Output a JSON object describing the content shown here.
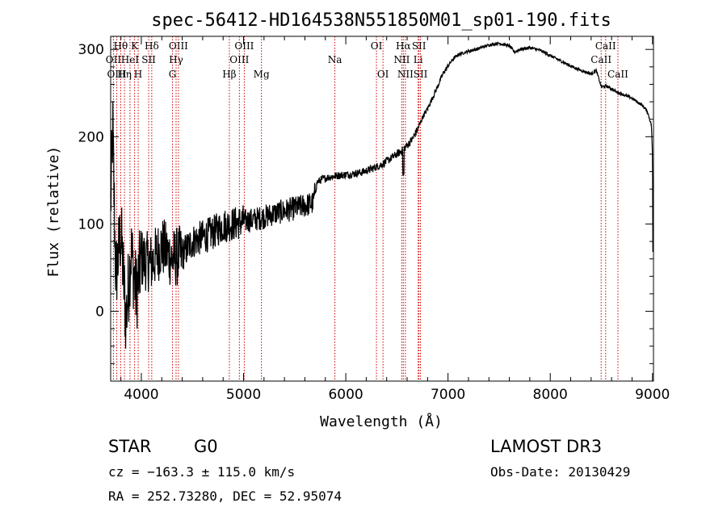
{
  "chart_data": {
    "type": "line",
    "title": "spec-56412-HD164538N551850M01_sp01-190.fits",
    "xlabel": "Wavelength (Å)",
    "ylabel": "Flux (relative)",
    "xlim": [
      3700,
      9010
    ],
    "ylim": [
      -80,
      315
    ],
    "xticks": [
      4000,
      5000,
      6000,
      7000,
      8000,
      9000
    ],
    "yticks": [
      0,
      100,
      200,
      300
    ],
    "colors": {
      "spectrum": "#000000",
      "lines": "#cc0000",
      "axes": "#000000"
    },
    "spectrum_anchors": [
      [
        3700,
        120
      ],
      [
        3720,
        210
      ],
      [
        3750,
        40
      ],
      [
        3800,
        90
      ],
      [
        3850,
        -10
      ],
      [
        3900,
        70
      ],
      [
        3950,
        20
      ],
      [
        4000,
        60
      ],
      [
        4100,
        55
      ],
      [
        4200,
        75
      ],
      [
        4300,
        60
      ],
      [
        4400,
        65
      ],
      [
        4500,
        80
      ],
      [
        4600,
        85
      ],
      [
        4700,
        90
      ],
      [
        4800,
        98
      ],
      [
        4900,
        100
      ],
      [
        5000,
        103
      ],
      [
        5100,
        105
      ],
      [
        5200,
        108
      ],
      [
        5300,
        112
      ],
      [
        5400,
        115
      ],
      [
        5500,
        118
      ],
      [
        5600,
        121
      ],
      [
        5680,
        124
      ],
      [
        5720,
        148
      ],
      [
        5780,
        152
      ],
      [
        5850,
        154
      ],
      [
        5950,
        156
      ],
      [
        6050,
        157
      ],
      [
        6150,
        159
      ],
      [
        6250,
        163
      ],
      [
        6350,
        168
      ],
      [
        6450,
        176
      ],
      [
        6550,
        184
      ],
      [
        6600,
        190
      ],
      [
        6650,
        197
      ],
      [
        6700,
        208
      ],
      [
        6750,
        222
      ],
      [
        6800,
        232
      ],
      [
        6850,
        245
      ],
      [
        6900,
        258
      ],
      [
        6950,
        272
      ],
      [
        7000,
        281
      ],
      [
        7050,
        289
      ],
      [
        7100,
        294
      ],
      [
        7200,
        298
      ],
      [
        7300,
        301
      ],
      [
        7400,
        305
      ],
      [
        7500,
        307
      ],
      [
        7600,
        304
      ],
      [
        7650,
        297
      ],
      [
        7700,
        300
      ],
      [
        7800,
        302
      ],
      [
        7900,
        299
      ],
      [
        8000,
        293
      ],
      [
        8100,
        287
      ],
      [
        8200,
        281
      ],
      [
        8300,
        276
      ],
      [
        8400,
        272
      ],
      [
        8450,
        276
      ],
      [
        8500,
        257
      ],
      [
        8550,
        258
      ],
      [
        8600,
        255
      ],
      [
        8650,
        251
      ],
      [
        8700,
        249
      ],
      [
        8800,
        244
      ],
      [
        8900,
        236
      ],
      [
        8950,
        229
      ],
      [
        8990,
        213
      ],
      [
        9000,
        180
      ],
      [
        9005,
        40
      ]
    ],
    "lines": [
      {
        "name": "Hθ",
        "wavelength": 3798,
        "row": 1
      },
      {
        "name": "OII",
        "wavelength": 3727,
        "row": 2
      },
      {
        "name": "OIII",
        "wavelength": 3760,
        "row": 3
      },
      {
        "name": "Hη",
        "wavelength": 3835,
        "row": 3
      },
      {
        "name": "K",
        "wavelength": 3934,
        "row": 1
      },
      {
        "name": "HeI",
        "wavelength": 3889,
        "row": 2
      },
      {
        "name": "SII",
        "wavelength": 4072,
        "row": 2
      },
      {
        "name": "H",
        "wavelength": 3969,
        "row": 3
      },
      {
        "name": "Hδ",
        "wavelength": 4102,
        "row": 1
      },
      {
        "name": "OIII",
        "wavelength": 4363,
        "row": 1
      },
      {
        "name": "Hγ",
        "wavelength": 4340,
        "row": 2
      },
      {
        "name": "G",
        "wavelength": 4305,
        "row": 3
      },
      {
        "name": "Hβ",
        "wavelength": 4861,
        "row": 3
      },
      {
        "name": "OIII",
        "wavelength": 5007,
        "row": 1
      },
      {
        "name": "OIII",
        "wavelength": 4959,
        "row": 2
      },
      {
        "name": "Mg",
        "wavelength": 5175,
        "row": 3
      },
      {
        "name": "Na",
        "wavelength": 5893,
        "row": 2
      },
      {
        "name": "OI",
        "wavelength": 6300,
        "row": 1
      },
      {
        "name": "OI",
        "wavelength": 6364,
        "row": 3
      },
      {
        "name": "Hα",
        "wavelength": 6563,
        "row": 1
      },
      {
        "name": "SII",
        "wavelength": 6716,
        "row": 1
      },
      {
        "name": "NII",
        "wavelength": 6548,
        "row": 2
      },
      {
        "name": "Li",
        "wavelength": 6708,
        "row": 2
      },
      {
        "name": "NII",
        "wavelength": 6583,
        "row": 3
      },
      {
        "name": "SII",
        "wavelength": 6731,
        "row": 3
      },
      {
        "name": "CaII",
        "wavelength": 8542,
        "row": 1
      },
      {
        "name": "CaII",
        "wavelength": 8498,
        "row": 2
      },
      {
        "name": "CaII",
        "wavelength": 8662,
        "row": 3
      }
    ]
  },
  "info": {
    "class": "STAR",
    "subclass": "G0",
    "survey": "LAMOST DR3",
    "cz": "cz = −163.3 ± 115.0 km/s",
    "obs_date": "Obs-Date: 20130429",
    "radec": "RA = 252.73280, DEC =  52.95074"
  }
}
